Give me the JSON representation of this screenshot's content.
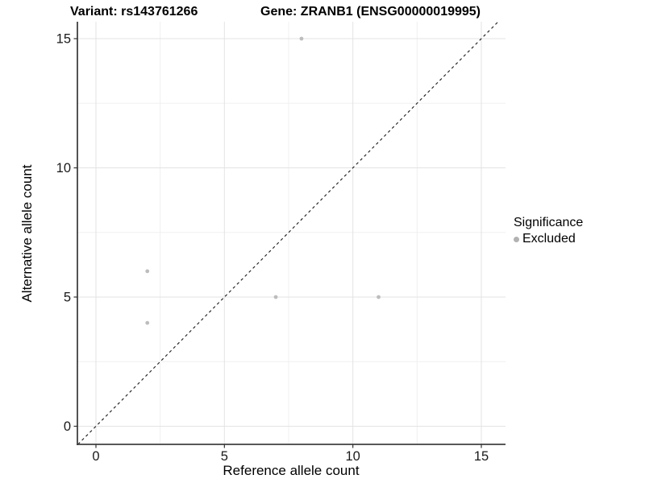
{
  "chart_data": {
    "type": "scatter",
    "titles": {
      "left": "Variant: rs143761266",
      "right": "Gene: ZRANB1 (ENSG00000019995)"
    },
    "xlabel": "Reference allele count",
    "ylabel": "Alternative allele count",
    "x_ticks": [
      0,
      5,
      10,
      15
    ],
    "x_minor_ticks": [
      2.5,
      7.5,
      12.5
    ],
    "y_ticks": [
      0,
      5,
      10,
      15
    ],
    "y_minor_ticks": [
      2.5,
      7.5,
      12.5
    ],
    "xlim": [
      -0.72,
      15.94
    ],
    "ylim": [
      -0.7,
      15.66
    ],
    "grid": "major+minor",
    "legend": {
      "title": "Significance",
      "position": "right",
      "items": [
        {
          "label": "Excluded",
          "color": "#b2b2b2"
        }
      ]
    },
    "series": [
      {
        "name": "Excluded",
        "type": "points",
        "color": "#bdbdbd",
        "points": [
          [
            2,
            4
          ],
          [
            2,
            6
          ],
          [
            7,
            5
          ],
          [
            8,
            15
          ],
          [
            11,
            5
          ]
        ]
      }
    ],
    "reference_line": {
      "kind": "identity",
      "equation": "y = x",
      "style": "dashed",
      "color": "#1a1a1a"
    }
  },
  "style": {
    "grid_major": "#e3e3e3",
    "grid_minor": "#f0f0f0",
    "axis_line": "#404040",
    "tick_color": "#333333",
    "tick_label_color": "#1a1a1a",
    "point_color": "#bdbdbd",
    "background": "#ffffff"
  }
}
